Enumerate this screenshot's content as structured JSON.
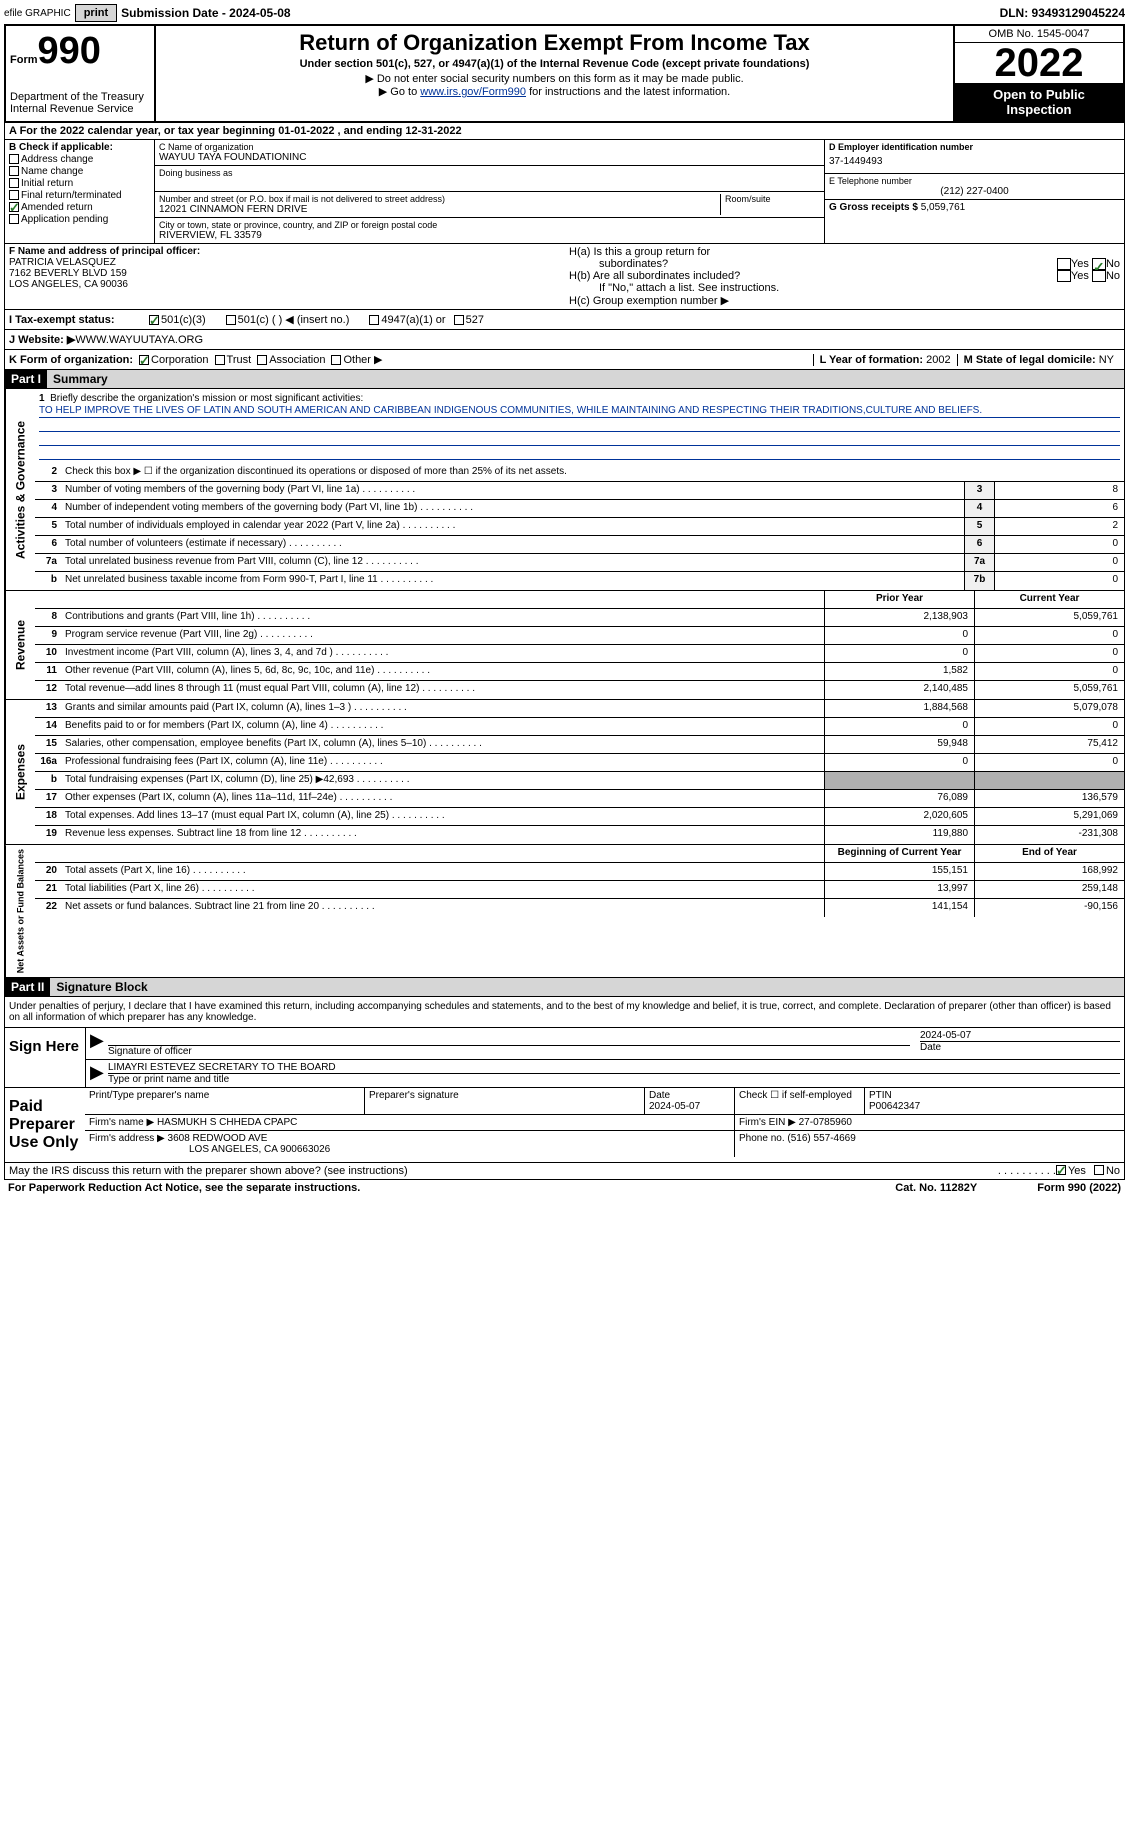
{
  "topbar": {
    "efile_label": "efile GRAPHIC",
    "print_btn": "print",
    "submission_label": "Submission Date - 2024-05-08",
    "dln": "DLN: 93493129045224"
  },
  "header": {
    "form_word": "Form",
    "form_num": "990",
    "dept": "Department of the Treasury",
    "irs": "Internal Revenue Service",
    "title": "Return of Organization Exempt From Income Tax",
    "subtitle": "Under section 501(c), 527, or 4947(a)(1) of the Internal Revenue Code (except private foundations)",
    "note1": "▶ Do not enter social security numbers on this form as it may be made public.",
    "note2_pre": "▶ Go to ",
    "note2_link": "www.irs.gov/Form990",
    "note2_post": " for instructions and the latest information.",
    "omb": "OMB No. 1545-0047",
    "year": "2022",
    "open_pub": "Open to Public Inspection"
  },
  "period": "A For the 2022 calendar year, or tax year beginning 01-01-2022    , and ending 12-31-2022",
  "boxB": {
    "title": "B Check if applicable:",
    "items": [
      "Address change",
      "Name change",
      "Initial return",
      "Final return/terminated",
      "Amended return",
      "Application pending"
    ],
    "checked_index": 4
  },
  "boxC": {
    "name_lbl": "C Name of organization",
    "name": "WAYUU TAYA FOUNDATIONINC",
    "dba_lbl": "Doing business as",
    "addr_lbl": "Number and street (or P.O. box if mail is not delivered to street address)",
    "addr": "12021 CINNAMON FERN DRIVE",
    "room_lbl": "Room/suite",
    "city_lbl": "City or town, state or province, country, and ZIP or foreign postal code",
    "city": "RIVERVIEW, FL  33579"
  },
  "boxD": {
    "ein_lbl": "D Employer identification number",
    "ein": "37-1449493",
    "phone_lbl": "E Telephone number",
    "phone": "(212) 227-0400",
    "gross_lbl": "G Gross receipts $",
    "gross": "5,059,761"
  },
  "boxF": {
    "lbl": "F  Name and address of principal officer:",
    "name": "PATRICIA VELASQUEZ",
    "addr1": "7162 BEVERLY BLVD 159",
    "addr2": "LOS ANGELES, CA  90036"
  },
  "boxH": {
    "ha": "H(a)  Is this a group return for",
    "ha2": "subordinates?",
    "hb": "H(b)  Are all subordinates included?",
    "hb_note": "If \"No,\" attach a list. See instructions.",
    "hc": "H(c)  Group exemption number ▶",
    "yes": "Yes",
    "no": "No"
  },
  "boxI": {
    "lbl": "I    Tax-exempt status:",
    "opt1": "501(c)(3)",
    "opt2": "501(c) (  ) ◀ (insert no.)",
    "opt3": "4947(a)(1) or",
    "opt4": "527"
  },
  "boxJ": {
    "lbl": "J    Website: ▶",
    "val": " WWW.WAYUUTAYA.ORG"
  },
  "boxK": {
    "lbl": "K Form of organization:",
    "corp": "Corporation",
    "trust": "Trust",
    "assoc": "Association",
    "other": "Other ▶"
  },
  "boxL": {
    "lbl": "L Year of formation:",
    "val": "2002"
  },
  "boxM": {
    "lbl": "M State of legal domicile:",
    "val": "NY"
  },
  "partI": {
    "num": "Part I",
    "title": "Summary"
  },
  "summary": {
    "line1_lbl": "Briefly describe the organization's mission or most significant activities:",
    "mission": "TO HELP IMPROVE THE LIVES OF LATIN AND SOUTH AMERICAN AND CARIBBEAN INDIGENOUS COMMUNITIES, WHILE MAINTAINING AND RESPECTING THEIR TRADITIONS,CULTURE AND BELIEFS.",
    "line2": "Check this box ▶ ☐ if the organization discontinued its operations or disposed of more than 25% of its net assets.",
    "rows_ag": [
      {
        "n": "3",
        "d": "Number of voting members of the governing body (Part VI, line 1a)",
        "box": "3",
        "v": "8"
      },
      {
        "n": "4",
        "d": "Number of independent voting members of the governing body (Part VI, line 1b)",
        "box": "4",
        "v": "6"
      },
      {
        "n": "5",
        "d": "Total number of individuals employed in calendar year 2022 (Part V, line 2a)",
        "box": "5",
        "v": "2"
      },
      {
        "n": "6",
        "d": "Total number of volunteers (estimate if necessary)",
        "box": "6",
        "v": "0"
      },
      {
        "n": "7a",
        "d": "Total unrelated business revenue from Part VIII, column (C), line 12",
        "box": "7a",
        "v": "0"
      },
      {
        "n": "b",
        "d": "Net unrelated business taxable income from Form 990-T, Part I, line 11",
        "box": "7b",
        "v": "0"
      }
    ],
    "prior_hdr": "Prior Year",
    "curr_hdr": "Current Year",
    "rows_rev": [
      {
        "n": "8",
        "d": "Contributions and grants (Part VIII, line 1h)",
        "p": "2,138,903",
        "c": "5,059,761"
      },
      {
        "n": "9",
        "d": "Program service revenue (Part VIII, line 2g)",
        "p": "0",
        "c": "0"
      },
      {
        "n": "10",
        "d": "Investment income (Part VIII, column (A), lines 3, 4, and 7d )",
        "p": "0",
        "c": "0"
      },
      {
        "n": "11",
        "d": "Other revenue (Part VIII, column (A), lines 5, 6d, 8c, 9c, 10c, and 11e)",
        "p": "1,582",
        "c": "0"
      },
      {
        "n": "12",
        "d": "Total revenue—add lines 8 through 11 (must equal Part VIII, column (A), line 12)",
        "p": "2,140,485",
        "c": "5,059,761"
      }
    ],
    "rows_exp": [
      {
        "n": "13",
        "d": "Grants and similar amounts paid (Part IX, column (A), lines 1–3 )",
        "p": "1,884,568",
        "c": "5,079,078"
      },
      {
        "n": "14",
        "d": "Benefits paid to or for members (Part IX, column (A), line 4)",
        "p": "0",
        "c": "0"
      },
      {
        "n": "15",
        "d": "Salaries, other compensation, employee benefits (Part IX, column (A), lines 5–10)",
        "p": "59,948",
        "c": "75,412"
      },
      {
        "n": "16a",
        "d": "Professional fundraising fees (Part IX, column (A), line 11e)",
        "p": "0",
        "c": "0"
      },
      {
        "n": "b",
        "d": "Total fundraising expenses (Part IX, column (D), line 25) ▶42,693",
        "p": "",
        "c": "",
        "shaded": true
      },
      {
        "n": "17",
        "d": "Other expenses (Part IX, column (A), lines 11a–11d, 11f–24e)",
        "p": "76,089",
        "c": "136,579"
      },
      {
        "n": "18",
        "d": "Total expenses. Add lines 13–17 (must equal Part IX, column (A), line 25)",
        "p": "2,020,605",
        "c": "5,291,069"
      },
      {
        "n": "19",
        "d": "Revenue less expenses. Subtract line 18 from line 12",
        "p": "119,880",
        "c": "-231,308"
      }
    ],
    "begin_hdr": "Beginning of Current Year",
    "end_hdr": "End of Year",
    "rows_na": [
      {
        "n": "20",
        "d": "Total assets (Part X, line 16)",
        "p": "155,151",
        "c": "168,992"
      },
      {
        "n": "21",
        "d": "Total liabilities (Part X, line 26)",
        "p": "13,997",
        "c": "259,148"
      },
      {
        "n": "22",
        "d": "Net assets or fund balances. Subtract line 21 from line 20",
        "p": "141,154",
        "c": "-90,156"
      }
    ],
    "side_ag": "Activities & Governance",
    "side_rev": "Revenue",
    "side_exp": "Expenses",
    "side_na": "Net Assets or Fund Balances"
  },
  "partII": {
    "num": "Part II",
    "title": "Signature Block"
  },
  "sig": {
    "perjury": "Under penalties of perjury, I declare that I have examined this return, including accompanying schedules and statements, and to the best of my knowledge and belief, it is true, correct, and complete. Declaration of preparer (other than officer) is based on all information of which preparer has any knowledge.",
    "sign_here": "Sign Here",
    "sig_officer": "Signature of officer",
    "date1": "2024-05-07",
    "date_lbl": "Date",
    "name_title": "LIMAYRI ESTEVEZ  SECRETARY TO THE BOARD",
    "type_lbl": "Type or print name and title",
    "paid_lbl": "Paid Preparer Use Only",
    "print_lbl": "Print/Type preparer's name",
    "prep_sig_lbl": "Preparer's signature",
    "date2": "2024-05-07",
    "check_self": "Check ☐ if self-employed",
    "ptin_lbl": "PTIN",
    "ptin": "P00642347",
    "firm_name_lbl": "Firm's name    ▶",
    "firm_name": "HASMUKH S CHHEDA CPAPC",
    "firm_ein_lbl": "Firm's EIN ▶",
    "firm_ein": "27-0785960",
    "firm_addr_lbl": "Firm's address ▶",
    "firm_addr1": "3608 REDWOOD AVE",
    "firm_addr2": "LOS ANGELES, CA  900663026",
    "phone_lbl": "Phone no.",
    "phone": "(516) 557-4669",
    "discuss": "May the IRS discuss this return with the preparer shown above? (see instructions)",
    "paperwork": "For Paperwork Reduction Act Notice, see the separate instructions.",
    "cat": "Cat. No. 11282Y",
    "form_foot": "Form 990 (2022)"
  }
}
